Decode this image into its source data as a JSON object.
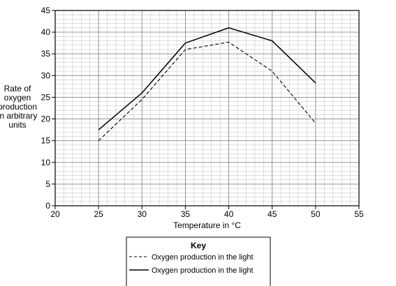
{
  "chart_data": {
    "type": "line",
    "title": "",
    "xlabel": "Temperature in °C",
    "ylabel": "Rate of oxygen production in arbitrary units",
    "ylabel_lines": [
      "Rate of",
      "oxygen",
      "production",
      "in arbitrary",
      "units"
    ],
    "xlim": [
      20,
      55
    ],
    "ylim": [
      0,
      45
    ],
    "x_ticks": [
      20,
      25,
      30,
      35,
      40,
      45,
      50,
      55
    ],
    "y_ticks": [
      0,
      5,
      10,
      15,
      20,
      25,
      30,
      35,
      40,
      45
    ],
    "grid": true,
    "grid_minor_x": 1,
    "grid_minor_y": 1,
    "legend_title": "Key",
    "legend_position": "bottom",
    "x": [
      25,
      30,
      35,
      40,
      45,
      50
    ],
    "series": [
      {
        "name": "Oxygen production in the light",
        "style": "dashed",
        "color": "#000000",
        "values": [
          15,
          24.5,
          36,
          37.7,
          31,
          19
        ]
      },
      {
        "name": "Oxygen production in the light",
        "style": "solid",
        "color": "#000000",
        "values": [
          17.5,
          26,
          37.5,
          41,
          38,
          28.3
        ]
      }
    ]
  }
}
